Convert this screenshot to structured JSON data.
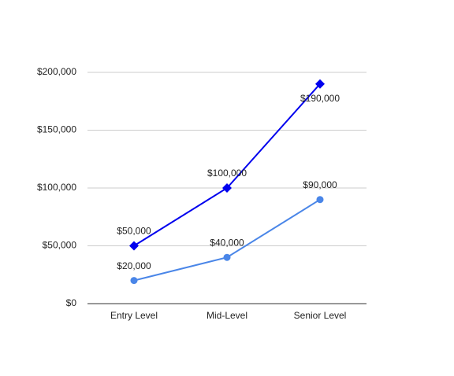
{
  "chart_data": {
    "type": "line",
    "categories": [
      "Entry Level",
      "Mid-Level",
      "Senior Level"
    ],
    "series": [
      {
        "color": "#4a86e8",
        "marker": "circle",
        "values": [
          20000,
          40000,
          90000
        ],
        "value_labels": [
          "$20,000",
          "$40,000",
          "$90,000"
        ]
      },
      {
        "color": "#0000ee",
        "marker": "diamond",
        "values": [
          50000,
          100000,
          190000
        ],
        "value_labels": [
          "$50,000",
          "$100,000",
          "$190,000"
        ]
      }
    ],
    "ylim": [
      0,
      200000
    ],
    "yticks": [
      {
        "value": 0,
        "label": "$0"
      },
      {
        "value": 50000,
        "label": "$50,000"
      },
      {
        "value": 100000,
        "label": "$100,000"
      },
      {
        "value": 150000,
        "label": "$150,000"
      },
      {
        "value": 200000,
        "label": "$200,000"
      }
    ],
    "grid": true
  }
}
